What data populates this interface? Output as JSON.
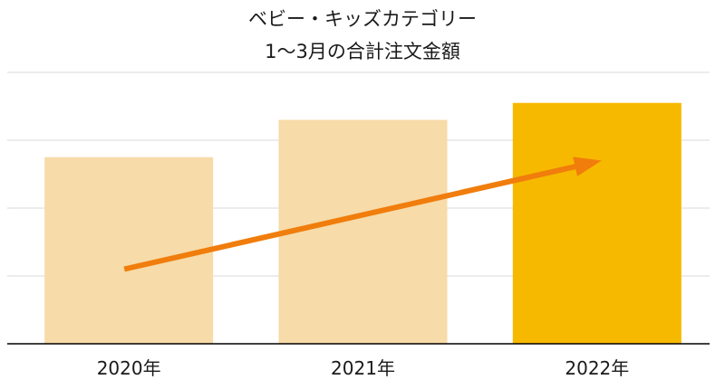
{
  "chart_data": {
    "type": "bar",
    "title": [
      "ベビー・キッズカテゴリー",
      "1〜3月の合計注文金額"
    ],
    "categories": [
      "2020年",
      "2021年",
      "2022年"
    ],
    "values": [
      55,
      66,
      71
    ],
    "ylim": [
      0,
      80
    ],
    "grid": true,
    "y_tick_labels_shown": false,
    "colors": {
      "bar_muted": "#f7dba8",
      "bar_highlight": "#f7b900",
      "arrow": "#f07d0c",
      "grid": "#d9d9d9",
      "axis": "#000000"
    },
    "highlight_index": 2,
    "annotation": {
      "type": "trend-arrow",
      "from_value": 22,
      "to_value": 54
    }
  }
}
